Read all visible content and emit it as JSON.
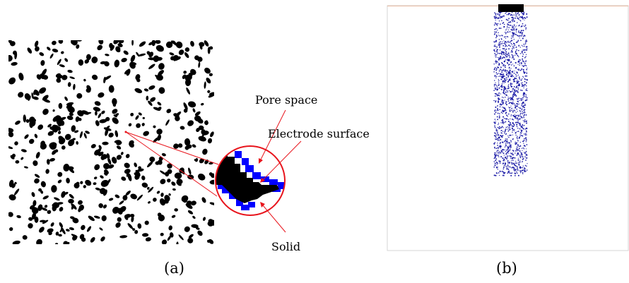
{
  "panel_a": {
    "caption": "(a)",
    "annotations": {
      "pore_space": "Pore space",
      "electrode_surface": "Electrode surface",
      "solid": "Solid"
    }
  },
  "panel_b": {
    "caption": "(b)"
  },
  "colors": {
    "solid": "#000000",
    "electrode_surface": "#0000ff",
    "pore_space": "#ffffff",
    "callout": "#e8141c",
    "particles": "#1a1aa6"
  }
}
